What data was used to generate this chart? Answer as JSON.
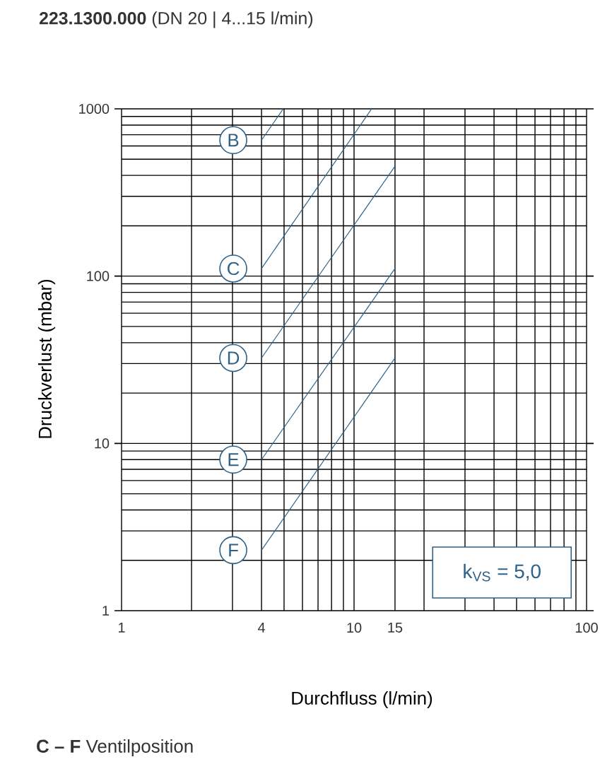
{
  "chart_data": {
    "type": "line",
    "title": "**223.1300.000** (DN 20 | 4...15 l/min)",
    "xlabel": "Durchfluss (l/min)",
    "ylabel": "Druckverlust (mbar)",
    "annotations": [
      "k$_{VS}$ = 5,0",
      "**C – F** Ventilposition"
    ],
    "log": "xy",
    "xlim": [
      1,
      100
    ],
    "ylim": [
      1,
      1000
    ],
    "xticks": [
      1,
      4,
      10,
      15,
      100
    ],
    "yticks": [
      1,
      10,
      100,
      1000
    ],
    "grid": true,
    "legend": false,
    "marker": "none",
    "line_style": "solid",
    "series": [
      {
        "name": "B",
        "color": "#2e6288",
        "x": [
          4,
          4.96
        ],
        "values": [
          650,
          1000
        ]
      },
      {
        "name": "C",
        "color": "#2e6288",
        "x": [
          4,
          11.9
        ],
        "values": [
          111,
          1000
        ]
      },
      {
        "name": "D",
        "color": "#2e6288",
        "x": [
          4,
          15
        ],
        "values": [
          32.4,
          454
        ]
      },
      {
        "name": "E",
        "color": "#2e6288",
        "x": [
          4,
          15
        ],
        "values": [
          8.0,
          111
        ]
      },
      {
        "name": "F",
        "color": "#2e6288",
        "x": [
          4,
          15
        ],
        "values": [
          2.3,
          32.4
        ]
      }
    ]
  }
}
